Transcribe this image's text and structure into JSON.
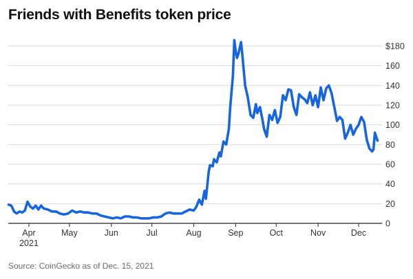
{
  "source": "Source: CoinGecko as of Dec. 15, 2021",
  "colors": {
    "line": "#1565e0",
    "grid": "#d9d9d9",
    "axis": "#222222",
    "text": "#333333"
  },
  "chart_data": {
    "type": "line",
    "title": "Friends with Benefits token price",
    "xlabel": "",
    "ylabel": "",
    "ylim": [
      0,
      180
    ],
    "y_ticks": [
      0,
      20,
      40,
      60,
      80,
      100,
      120,
      140,
      160,
      180
    ],
    "y_tick_labels": [
      "0",
      "20",
      "40",
      "60",
      "80",
      "100",
      "120",
      "140",
      "160",
      "$180"
    ],
    "x_ticks": [
      {
        "date": "2021-04-01",
        "label": "Apr",
        "sublabel": "2021"
      },
      {
        "date": "2021-05-01",
        "label": "May",
        "sublabel": ""
      },
      {
        "date": "2021-06-01",
        "label": "Jun",
        "sublabel": ""
      },
      {
        "date": "2021-07-01",
        "label": "Jul",
        "sublabel": ""
      },
      {
        "date": "2021-08-01",
        "label": "Aug",
        "sublabel": ""
      },
      {
        "date": "2021-09-01",
        "label": "Sep",
        "sublabel": ""
      },
      {
        "date": "2021-10-01",
        "label": "Oct",
        "sublabel": ""
      },
      {
        "date": "2021-11-01",
        "label": "Nov",
        "sublabel": ""
      },
      {
        "date": "2021-12-01",
        "label": "Dec",
        "sublabel": ""
      }
    ],
    "xlim": [
      "2021-03-17",
      "2021-12-15"
    ],
    "grid": true,
    "legend": "none",
    "series": [
      {
        "name": "",
        "points": [
          [
            "2021-03-17",
            19
          ],
          [
            "2021-03-19",
            18
          ],
          [
            "2021-03-21",
            12
          ],
          [
            "2021-03-23",
            10
          ],
          [
            "2021-03-25",
            12
          ],
          [
            "2021-03-27",
            11
          ],
          [
            "2021-03-29",
            13
          ],
          [
            "2021-03-31",
            22
          ],
          [
            "2021-04-02",
            17
          ],
          [
            "2021-04-04",
            15
          ],
          [
            "2021-04-06",
            18
          ],
          [
            "2021-04-08",
            14
          ],
          [
            "2021-04-10",
            18
          ],
          [
            "2021-04-12",
            15
          ],
          [
            "2021-04-15",
            14
          ],
          [
            "2021-04-18",
            12
          ],
          [
            "2021-04-21",
            12
          ],
          [
            "2021-04-24",
            10
          ],
          [
            "2021-04-27",
            9
          ],
          [
            "2021-04-30",
            10
          ],
          [
            "2021-05-03",
            13
          ],
          [
            "2021-05-06",
            11
          ],
          [
            "2021-05-09",
            12
          ],
          [
            "2021-05-12",
            11
          ],
          [
            "2021-05-15",
            11
          ],
          [
            "2021-05-18",
            10
          ],
          [
            "2021-05-21",
            10
          ],
          [
            "2021-05-24",
            8
          ],
          [
            "2021-05-27",
            7
          ],
          [
            "2021-05-30",
            6
          ],
          [
            "2021-06-02",
            5
          ],
          [
            "2021-06-05",
            6
          ],
          [
            "2021-06-08",
            5
          ],
          [
            "2021-06-11",
            7
          ],
          [
            "2021-06-14",
            7
          ],
          [
            "2021-06-17",
            6
          ],
          [
            "2021-06-20",
            6
          ],
          [
            "2021-06-23",
            5
          ],
          [
            "2021-06-26",
            5
          ],
          [
            "2021-06-29",
            5
          ],
          [
            "2021-07-02",
            6
          ],
          [
            "2021-07-05",
            6
          ],
          [
            "2021-07-08",
            7
          ],
          [
            "2021-07-11",
            10
          ],
          [
            "2021-07-14",
            11
          ],
          [
            "2021-07-17",
            10
          ],
          [
            "2021-07-20",
            10
          ],
          [
            "2021-07-23",
            10
          ],
          [
            "2021-07-26",
            12
          ],
          [
            "2021-07-29",
            14
          ],
          [
            "2021-08-01",
            13
          ],
          [
            "2021-08-03",
            17
          ],
          [
            "2021-08-05",
            24
          ],
          [
            "2021-08-07",
            19
          ],
          [
            "2021-08-09",
            33
          ],
          [
            "2021-08-10",
            25
          ],
          [
            "2021-08-12",
            52
          ],
          [
            "2021-08-13",
            59
          ],
          [
            "2021-08-15",
            58
          ],
          [
            "2021-08-16",
            65
          ],
          [
            "2021-08-18",
            62
          ],
          [
            "2021-08-20",
            72
          ],
          [
            "2021-08-21",
            68
          ],
          [
            "2021-08-23",
            83
          ],
          [
            "2021-08-25",
            80
          ],
          [
            "2021-08-27",
            96
          ],
          [
            "2021-08-28",
            118
          ],
          [
            "2021-08-30",
            150
          ],
          [
            "2021-08-31",
            186
          ],
          [
            "2021-09-01",
            175
          ],
          [
            "2021-09-02",
            168
          ],
          [
            "2021-09-03",
            172
          ],
          [
            "2021-09-05",
            184
          ],
          [
            "2021-09-06",
            170
          ],
          [
            "2021-09-08",
            140
          ],
          [
            "2021-09-10",
            128
          ],
          [
            "2021-09-12",
            110
          ],
          [
            "2021-09-14",
            107
          ],
          [
            "2021-09-16",
            121
          ],
          [
            "2021-09-17",
            112
          ],
          [
            "2021-09-19",
            118
          ],
          [
            "2021-09-21",
            104
          ],
          [
            "2021-09-22",
            96
          ],
          [
            "2021-09-24",
            88
          ],
          [
            "2021-09-26",
            110
          ],
          [
            "2021-09-28",
            105
          ],
          [
            "2021-09-30",
            115
          ],
          [
            "2021-10-02",
            102
          ],
          [
            "2021-10-04",
            108
          ],
          [
            "2021-10-06",
            130
          ],
          [
            "2021-10-08",
            125
          ],
          [
            "2021-10-10",
            136
          ],
          [
            "2021-10-12",
            135
          ],
          [
            "2021-10-14",
            118
          ],
          [
            "2021-10-16",
            110
          ],
          [
            "2021-10-18",
            131
          ],
          [
            "2021-10-20",
            128
          ],
          [
            "2021-10-22",
            126
          ],
          [
            "2021-10-24",
            122
          ],
          [
            "2021-10-26",
            133
          ],
          [
            "2021-10-28",
            120
          ],
          [
            "2021-10-30",
            130
          ],
          [
            "2021-11-01",
            118
          ],
          [
            "2021-11-03",
            138
          ],
          [
            "2021-11-05",
            125
          ],
          [
            "2021-11-07",
            137
          ],
          [
            "2021-11-09",
            140
          ],
          [
            "2021-11-11",
            132
          ],
          [
            "2021-11-13",
            118
          ],
          [
            "2021-11-15",
            104
          ],
          [
            "2021-11-17",
            108
          ],
          [
            "2021-11-19",
            105
          ],
          [
            "2021-11-21",
            86
          ],
          [
            "2021-11-23",
            92
          ],
          [
            "2021-11-25",
            100
          ],
          [
            "2021-11-27",
            90
          ],
          [
            "2021-11-29",
            96
          ],
          [
            "2021-12-01",
            100
          ],
          [
            "2021-12-03",
            108
          ],
          [
            "2021-12-05",
            103
          ],
          [
            "2021-12-07",
            85
          ],
          [
            "2021-12-09",
            76
          ],
          [
            "2021-12-11",
            73
          ],
          [
            "2021-12-12",
            75
          ],
          [
            "2021-12-13",
            92
          ],
          [
            "2021-12-14",
            88
          ],
          [
            "2021-12-15",
            84
          ]
        ]
      }
    ]
  }
}
